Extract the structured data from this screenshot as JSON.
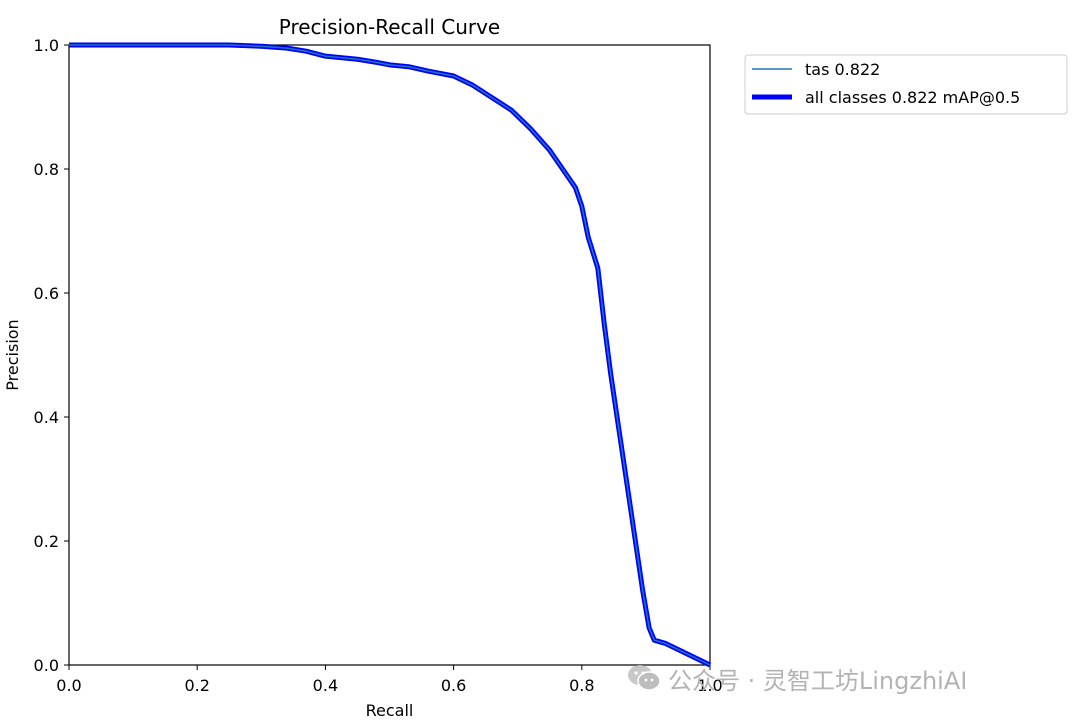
{
  "chart_data": {
    "type": "line",
    "title": "Precision-Recall Curve",
    "xlabel": "Recall",
    "ylabel": "Precision",
    "xlim": [
      0,
      1
    ],
    "ylim": [
      0,
      1
    ],
    "xticks": [
      "0.0",
      "0.2",
      "0.4",
      "0.6",
      "0.8",
      "1.0"
    ],
    "yticks": [
      "0.0",
      "0.2",
      "0.4",
      "0.6",
      "0.8",
      "1.0"
    ],
    "grid": false,
    "legend_placement": "outside-top-right",
    "series": [
      {
        "name": "tas 0.822",
        "color": "#1f77b4",
        "x": [
          0.0,
          0.05,
          0.1,
          0.15,
          0.2,
          0.25,
          0.3,
          0.34,
          0.37,
          0.4,
          0.45,
          0.48,
          0.5,
          0.53,
          0.56,
          0.6,
          0.63,
          0.66,
          0.69,
          0.72,
          0.75,
          0.77,
          0.79,
          0.8,
          0.81,
          0.825,
          0.835,
          0.845,
          0.855,
          0.865,
          0.875,
          0.885,
          0.895,
          0.905,
          0.913,
          0.93,
          1.0
        ],
        "values": [
          1.0,
          1.0,
          1.0,
          1.0,
          1.0,
          1.0,
          0.998,
          0.995,
          0.99,
          0.982,
          0.977,
          0.972,
          0.968,
          0.965,
          0.958,
          0.95,
          0.935,
          0.915,
          0.895,
          0.865,
          0.83,
          0.8,
          0.77,
          0.74,
          0.69,
          0.64,
          0.55,
          0.47,
          0.4,
          0.33,
          0.26,
          0.19,
          0.12,
          0.06,
          0.04,
          0.035,
          0.0
        ]
      },
      {
        "name": "all classes 0.822 mAP@0.5",
        "color": "#0000ff",
        "x": [
          0.0,
          0.05,
          0.1,
          0.15,
          0.2,
          0.25,
          0.3,
          0.34,
          0.37,
          0.4,
          0.45,
          0.48,
          0.5,
          0.53,
          0.56,
          0.6,
          0.63,
          0.66,
          0.69,
          0.72,
          0.75,
          0.77,
          0.79,
          0.8,
          0.81,
          0.825,
          0.835,
          0.845,
          0.855,
          0.865,
          0.875,
          0.885,
          0.895,
          0.905,
          0.913,
          0.93,
          1.0
        ],
        "values": [
          1.0,
          1.0,
          1.0,
          1.0,
          1.0,
          1.0,
          0.998,
          0.995,
          0.99,
          0.982,
          0.977,
          0.972,
          0.968,
          0.965,
          0.958,
          0.95,
          0.935,
          0.915,
          0.895,
          0.865,
          0.83,
          0.8,
          0.77,
          0.74,
          0.69,
          0.64,
          0.55,
          0.47,
          0.4,
          0.33,
          0.26,
          0.19,
          0.12,
          0.06,
          0.04,
          0.035,
          0.0
        ]
      }
    ]
  },
  "watermark": {
    "text": "公众号 · 灵智工坊LingzhiAI"
  }
}
